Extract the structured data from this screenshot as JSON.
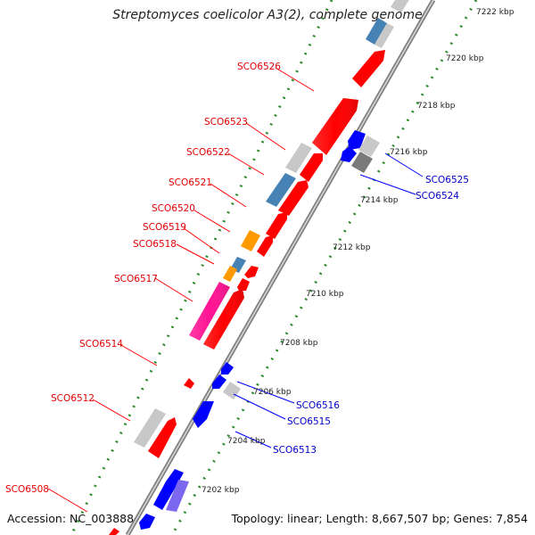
{
  "title": "Streptomyces coelicolor A3(2), complete genome",
  "footer": {
    "accession": "Accession: NC_003888",
    "summary": "Topology: linear; Length: 8,667,507 bp; Genes: 7,854"
  },
  "colors": {
    "forward_strand": "#ff0000",
    "reverse_strand": "#0000ff",
    "pink": "#ff1493",
    "orange": "#ff9900",
    "steel_blue": "#4682b4",
    "gray": "#c8c8c8",
    "dark_gray": "#7a7a7a",
    "violet": "#7b68ee",
    "backbone": "#808080",
    "ruler_dots": "#2e8b2e"
  },
  "ruler_labels": [
    "7202 kbp",
    "7204 kbp",
    "7206 kbp",
    "7208 kbp",
    "7210 kbp",
    "7212 kbp",
    "7214 kbp",
    "7216 kbp",
    "7218 kbp",
    "7220 kbp",
    "7222 kbp"
  ],
  "gene_labels_left": [
    "SCO6508",
    "SCO6512",
    "SCO6514",
    "SCO6517",
    "SCO6518",
    "SCO6519",
    "SCO6520",
    "SCO6521",
    "SCO6522",
    "SCO6523",
    "SCO6526"
  ],
  "gene_labels_right": [
    "SCO6513",
    "SCO6515",
    "SCO6516",
    "SCO6524",
    "SCO6525"
  ]
}
